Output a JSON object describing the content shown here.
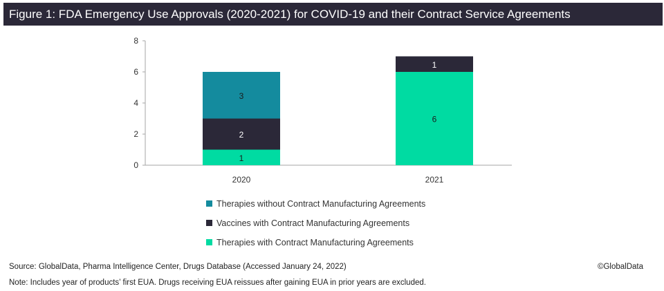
{
  "title": "Figure 1: FDA Emergency Use Approvals (2020-2021) for COVID-19 and their Contract Service Agreements",
  "source": "Source: GlobalData, Pharma Intelligence Center, Drugs Database (Accessed January 24, 2022)",
  "note": "Note: Includes year of products’ first EUA. Drugs receiving EUA reissues after gaining EUA in prior years are excluded.",
  "copyright": "©GlobalData",
  "chart_data": {
    "type": "bar",
    "stacked": true,
    "categories": [
      "2020",
      "2021"
    ],
    "ylim": [
      0,
      8
    ],
    "yticks": [
      0,
      2,
      4,
      6,
      8
    ],
    "legend_position": "bottom",
    "series": [
      {
        "name": "Therapies with Contract Manufacturing Agreements",
        "color": "#00dba2",
        "values": [
          1,
          6
        ]
      },
      {
        "name": "Vaccines with Contract Manufacturing Agreements",
        "color": "#2b2838",
        "values": [
          2,
          1
        ]
      },
      {
        "name": "Therapies without Contract Manufacturing Agreements",
        "color": "#148b9e",
        "values": [
          3,
          null
        ]
      }
    ]
  }
}
